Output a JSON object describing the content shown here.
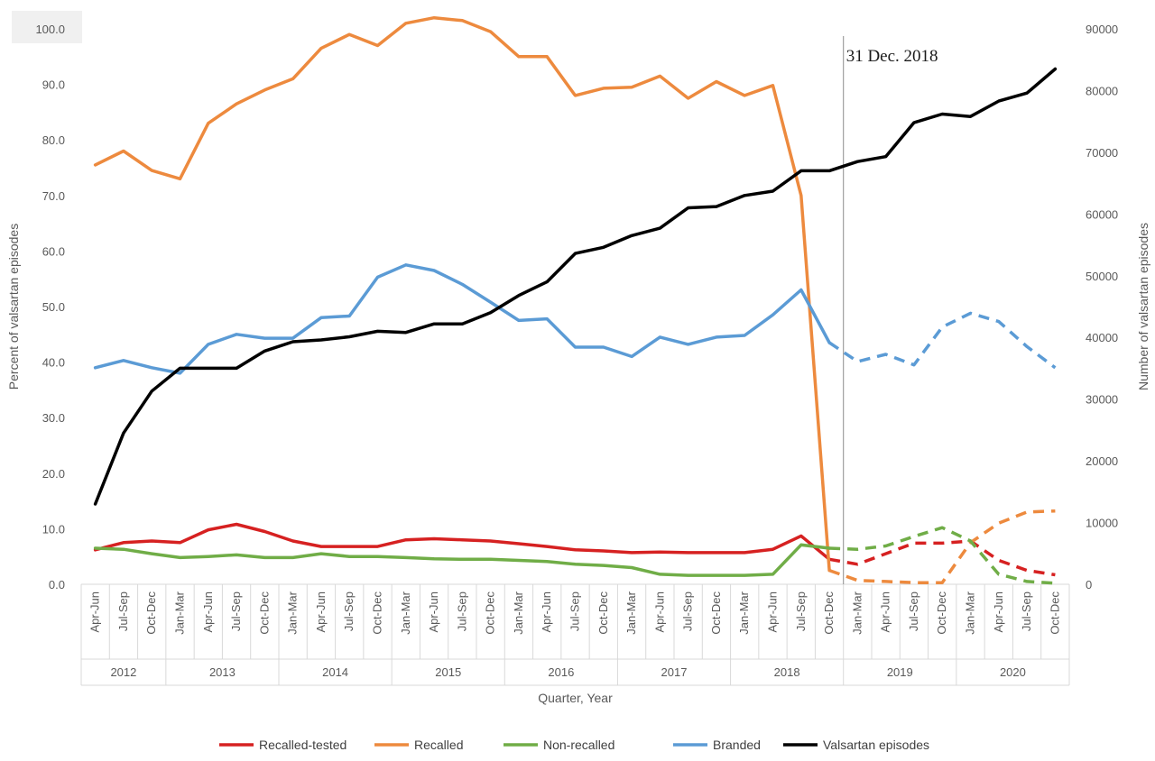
{
  "chart_data": {
    "type": "line",
    "annotation": "31 Dec. 2018",
    "xlabel": "Quarter, Year",
    "ylabel_left": "Percent of valsartan episodes",
    "ylabel_right": "Number of valsartan episodes",
    "ylim_left": [
      0,
      100
    ],
    "ylim_right": [
      0,
      90000
    ],
    "yticks_left": [
      "0.0",
      "10.0",
      "20.0",
      "30.0",
      "40.0",
      "50.0",
      "60.0",
      "70.0",
      "80.0",
      "90.0",
      "100.0"
    ],
    "yticks_right": [
      "0",
      "10000",
      "20000",
      "30000",
      "40000",
      "50000",
      "60000",
      "70000",
      "80000",
      "90000"
    ],
    "quarters": [
      "Apr-Jun",
      "Jul-Sep",
      "Oct-Dec",
      "Jan-Mar",
      "Apr-Jun",
      "Jul-Sep",
      "Oct-Dec",
      "Jan-Mar",
      "Apr-Jun",
      "Jul-Sep",
      "Oct-Dec",
      "Jan-Mar",
      "Apr-Jun",
      "Jul-Sep",
      "Oct-Dec",
      "Jan-Mar",
      "Apr-Jun",
      "Jul-Sep",
      "Oct-Dec",
      "Jan-Mar",
      "Apr-Jun",
      "Jul-Sep",
      "Oct-Dec",
      "Jan-Mar",
      "Apr-Jun",
      "Jul-Sep",
      "Oct-Dec",
      "Jan-Mar",
      "Apr-Jun",
      "Jul-Sep",
      "Oct-Dec",
      "Jan-Mar",
      "Apr-Jun",
      "Jul-Sep",
      "Oct-Dec"
    ],
    "years": [
      {
        "label": "2012",
        "count": 3
      },
      {
        "label": "2013",
        "count": 4
      },
      {
        "label": "2014",
        "count": 4
      },
      {
        "label": "2015",
        "count": 4
      },
      {
        "label": "2016",
        "count": 4
      },
      {
        "label": "2017",
        "count": 4
      },
      {
        "label": "2018",
        "count": 4
      },
      {
        "label": "2019",
        "count": 4
      },
      {
        "label": "2020",
        "count": 4
      }
    ],
    "marker_after_index": 26,
    "series": [
      {
        "name": "Recalled-tested",
        "color": "#d62121",
        "axis": "left",
        "dashed_from": 27,
        "values": [
          6.2,
          7.5,
          7.8,
          7.5,
          9.8,
          10.8,
          9.5,
          7.8,
          6.8,
          6.8,
          6.8,
          8.0,
          8.2,
          8.0,
          7.8,
          7.3,
          6.8,
          6.2,
          6.0,
          5.7,
          5.8,
          5.7,
          5.7,
          5.7,
          6.3,
          8.7,
          4.5,
          3.6,
          5.5,
          7.4,
          7.4,
          7.8,
          4.3,
          2.5,
          1.7
        ]
      },
      {
        "name": "Recalled",
        "color": "#ed8a3e",
        "axis": "left",
        "dashed_from": 27,
        "values": [
          75.5,
          78.0,
          74.5,
          73.0,
          83.0,
          86.5,
          89.0,
          91.0,
          96.5,
          99.0,
          97.0,
          101.0,
          102.0,
          101.5,
          99.5,
          95.0,
          95.0,
          88.0,
          89.3,
          89.5,
          91.5,
          87.5,
          90.5,
          88.0,
          89.8,
          70.0,
          2.5,
          0.7,
          0.5,
          0.3,
          0.3,
          7.5,
          11.0,
          13.0,
          13.2
        ]
      },
      {
        "name": "Non-recalled",
        "color": "#70ad47",
        "axis": "left",
        "dashed_from": 27,
        "values": [
          6.5,
          6.3,
          5.5,
          4.8,
          5.0,
          5.3,
          4.8,
          4.8,
          5.5,
          5.0,
          5.0,
          4.8,
          4.6,
          4.5,
          4.5,
          4.3,
          4.1,
          3.6,
          3.4,
          3.0,
          1.8,
          1.6,
          1.6,
          1.6,
          1.8,
          7.1,
          6.5,
          6.3,
          6.9,
          8.6,
          10.2,
          7.8,
          1.8,
          0.5,
          0.2
        ]
      },
      {
        "name": "Branded",
        "color": "#5b9bd5",
        "axis": "left",
        "dashed_from": 27,
        "values": [
          39.0,
          40.3,
          39.0,
          38.0,
          43.2,
          45.0,
          44.3,
          44.3,
          48.0,
          48.3,
          55.3,
          57.5,
          56.5,
          54.0,
          50.8,
          47.5,
          47.8,
          42.7,
          42.7,
          41.0,
          44.5,
          43.2,
          44.5,
          44.8,
          48.5,
          53.0,
          43.5,
          40.1,
          41.4,
          39.5,
          46.3,
          48.8,
          47.3,
          42.8,
          39.0
        ]
      },
      {
        "name": "Valsartan episodes",
        "color": "#000000",
        "axis": "right",
        "values": [
          13000,
          24500,
          31300,
          35000,
          35000,
          35000,
          37800,
          39300,
          39600,
          40100,
          41000,
          40800,
          42200,
          42200,
          44000,
          46800,
          49000,
          53600,
          54600,
          56500,
          57700,
          61000,
          61200,
          63000,
          63700,
          67000,
          67000,
          68500,
          69300,
          74800,
          76200,
          75800,
          78300,
          79600,
          83500
        ]
      }
    ]
  }
}
